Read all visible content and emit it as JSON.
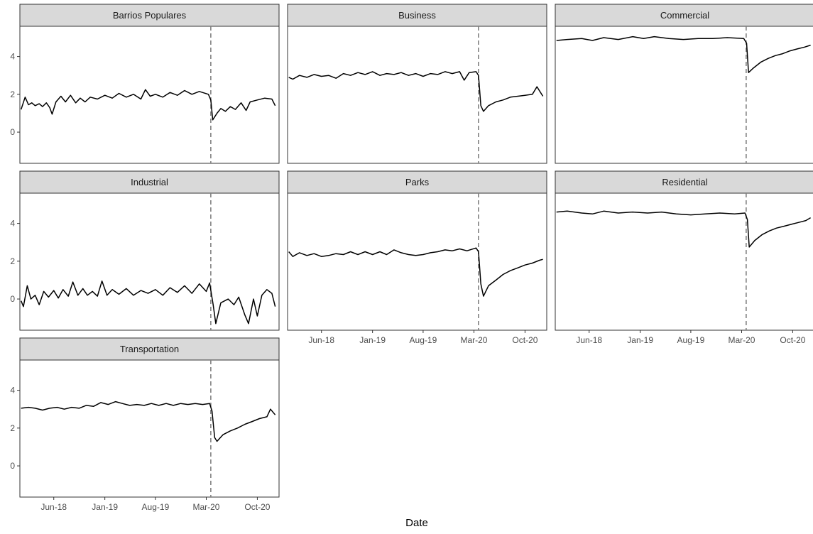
{
  "chart_data": {
    "type": "line",
    "xlabel": "Date",
    "ylabel": "",
    "ylim": [
      -1.65,
      5.6
    ],
    "yticks": [
      0,
      2,
      4
    ],
    "xlim": [
      "2018-01-10",
      "2020-12-31"
    ],
    "xticks": [
      {
        "date": "2018-06-01",
        "label": "Jun-18"
      },
      {
        "date": "2019-01-01",
        "label": "Jan-19"
      },
      {
        "date": "2019-08-01",
        "label": "Aug-19"
      },
      {
        "date": "2020-03-01",
        "label": "Mar-20"
      },
      {
        "date": "2020-10-01",
        "label": "Oct-20"
      }
    ],
    "reference_line": {
      "date": "2020-03-20",
      "style": "dashed",
      "color": "#808080"
    },
    "line_color": "#000000",
    "strip_color": "#d9d9d9",
    "panels": [
      {
        "name": "Barrios Populares",
        "points": [
          [
            "2018-01-15",
            1.2
          ],
          [
            "2018-02-01",
            1.85
          ],
          [
            "2018-02-15",
            1.45
          ],
          [
            "2018-03-01",
            1.55
          ],
          [
            "2018-03-15",
            1.4
          ],
          [
            "2018-04-01",
            1.5
          ],
          [
            "2018-04-15",
            1.35
          ],
          [
            "2018-05-01",
            1.55
          ],
          [
            "2018-05-15",
            1.3
          ],
          [
            "2018-05-25",
            0.95
          ],
          [
            "2018-06-10",
            1.6
          ],
          [
            "2018-07-01",
            1.9
          ],
          [
            "2018-07-20",
            1.6
          ],
          [
            "2018-08-10",
            1.95
          ],
          [
            "2018-09-01",
            1.55
          ],
          [
            "2018-09-20",
            1.8
          ],
          [
            "2018-10-10",
            1.6
          ],
          [
            "2018-11-01",
            1.85
          ],
          [
            "2018-12-01",
            1.75
          ],
          [
            "2019-01-01",
            1.95
          ],
          [
            "2019-02-01",
            1.8
          ],
          [
            "2019-03-01",
            2.05
          ],
          [
            "2019-04-01",
            1.85
          ],
          [
            "2019-05-01",
            2.0
          ],
          [
            "2019-06-01",
            1.75
          ],
          [
            "2019-06-20",
            2.25
          ],
          [
            "2019-07-10",
            1.9
          ],
          [
            "2019-08-01",
            2.0
          ],
          [
            "2019-09-01",
            1.85
          ],
          [
            "2019-10-01",
            2.1
          ],
          [
            "2019-11-01",
            1.95
          ],
          [
            "2019-12-01",
            2.2
          ],
          [
            "2020-01-01",
            2.0
          ],
          [
            "2020-02-01",
            2.15
          ],
          [
            "2020-03-10",
            2.0
          ],
          [
            "2020-03-20",
            1.7
          ],
          [
            "2020-03-28",
            0.65
          ],
          [
            "2020-04-15",
            1.0
          ],
          [
            "2020-05-01",
            1.25
          ],
          [
            "2020-05-20",
            1.1
          ],
          [
            "2020-06-10",
            1.35
          ],
          [
            "2020-07-01",
            1.2
          ],
          [
            "2020-07-25",
            1.55
          ],
          [
            "2020-08-15",
            1.15
          ],
          [
            "2020-09-01",
            1.6
          ],
          [
            "2020-10-01",
            1.7
          ],
          [
            "2020-11-01",
            1.8
          ],
          [
            "2020-12-01",
            1.75
          ],
          [
            "2020-12-15",
            1.4
          ]
        ]
      },
      {
        "name": "Business",
        "points": [
          [
            "2018-01-15",
            2.9
          ],
          [
            "2018-02-01",
            2.8
          ],
          [
            "2018-03-01",
            3.0
          ],
          [
            "2018-04-01",
            2.9
          ],
          [
            "2018-05-01",
            3.05
          ],
          [
            "2018-06-01",
            2.95
          ],
          [
            "2018-07-01",
            3.0
          ],
          [
            "2018-08-01",
            2.85
          ],
          [
            "2018-09-01",
            3.1
          ],
          [
            "2018-10-01",
            3.0
          ],
          [
            "2018-11-01",
            3.15
          ],
          [
            "2018-12-01",
            3.05
          ],
          [
            "2019-01-01",
            3.2
          ],
          [
            "2019-02-01",
            3.0
          ],
          [
            "2019-03-01",
            3.1
          ],
          [
            "2019-04-01",
            3.05
          ],
          [
            "2019-05-01",
            3.15
          ],
          [
            "2019-06-01",
            3.0
          ],
          [
            "2019-07-01",
            3.1
          ],
          [
            "2019-08-01",
            2.95
          ],
          [
            "2019-09-01",
            3.1
          ],
          [
            "2019-10-01",
            3.05
          ],
          [
            "2019-11-01",
            3.2
          ],
          [
            "2019-12-01",
            3.1
          ],
          [
            "2020-01-01",
            3.2
          ],
          [
            "2020-01-20",
            2.75
          ],
          [
            "2020-02-10",
            3.15
          ],
          [
            "2020-03-10",
            3.2
          ],
          [
            "2020-03-20",
            3.0
          ],
          [
            "2020-03-30",
            1.4
          ],
          [
            "2020-04-10",
            1.1
          ],
          [
            "2020-05-01",
            1.4
          ],
          [
            "2020-06-01",
            1.6
          ],
          [
            "2020-07-01",
            1.7
          ],
          [
            "2020-08-01",
            1.85
          ],
          [
            "2020-09-01",
            1.9
          ],
          [
            "2020-10-01",
            1.95
          ],
          [
            "2020-11-01",
            2.0
          ],
          [
            "2020-11-20",
            2.4
          ],
          [
            "2020-12-15",
            1.9
          ]
        ]
      },
      {
        "name": "Commercial",
        "points": [
          [
            "2018-01-15",
            4.85
          ],
          [
            "2018-03-01",
            4.9
          ],
          [
            "2018-05-01",
            4.95
          ],
          [
            "2018-06-15",
            4.85
          ],
          [
            "2018-08-01",
            5.0
          ],
          [
            "2018-10-01",
            4.9
          ],
          [
            "2018-12-01",
            5.05
          ],
          [
            "2019-01-15",
            4.95
          ],
          [
            "2019-03-01",
            5.05
          ],
          [
            "2019-05-01",
            4.95
          ],
          [
            "2019-07-01",
            4.9
          ],
          [
            "2019-09-01",
            4.95
          ],
          [
            "2019-11-01",
            4.95
          ],
          [
            "2020-01-01",
            5.0
          ],
          [
            "2020-03-10",
            4.95
          ],
          [
            "2020-03-22",
            4.7
          ],
          [
            "2020-03-30",
            3.15
          ],
          [
            "2020-04-20",
            3.4
          ],
          [
            "2020-05-20",
            3.7
          ],
          [
            "2020-06-20",
            3.9
          ],
          [
            "2020-07-20",
            4.05
          ],
          [
            "2020-08-20",
            4.15
          ],
          [
            "2020-09-20",
            4.3
          ],
          [
            "2020-10-20",
            4.4
          ],
          [
            "2020-11-20",
            4.5
          ],
          [
            "2020-12-15",
            4.6
          ]
        ]
      },
      {
        "name": "Industrial",
        "points": [
          [
            "2018-01-15",
            -0.1
          ],
          [
            "2018-01-25",
            -0.4
          ],
          [
            "2018-02-10",
            0.7
          ],
          [
            "2018-02-25",
            0.0
          ],
          [
            "2018-03-15",
            0.2
          ],
          [
            "2018-04-01",
            -0.3
          ],
          [
            "2018-04-20",
            0.4
          ],
          [
            "2018-05-10",
            0.1
          ],
          [
            "2018-06-01",
            0.45
          ],
          [
            "2018-06-20",
            0.05
          ],
          [
            "2018-07-10",
            0.5
          ],
          [
            "2018-08-01",
            0.15
          ],
          [
            "2018-08-20",
            0.9
          ],
          [
            "2018-09-10",
            0.2
          ],
          [
            "2018-10-01",
            0.55
          ],
          [
            "2018-10-20",
            0.2
          ],
          [
            "2018-11-10",
            0.4
          ],
          [
            "2018-12-01",
            0.15
          ],
          [
            "2018-12-20",
            0.95
          ],
          [
            "2019-01-10",
            0.2
          ],
          [
            "2019-02-01",
            0.5
          ],
          [
            "2019-03-01",
            0.25
          ],
          [
            "2019-04-01",
            0.55
          ],
          [
            "2019-05-01",
            0.2
          ],
          [
            "2019-06-01",
            0.45
          ],
          [
            "2019-07-01",
            0.3
          ],
          [
            "2019-08-01",
            0.5
          ],
          [
            "2019-09-01",
            0.2
          ],
          [
            "2019-10-01",
            0.6
          ],
          [
            "2019-11-01",
            0.35
          ],
          [
            "2019-12-01",
            0.7
          ],
          [
            "2020-01-01",
            0.3
          ],
          [
            "2020-02-01",
            0.8
          ],
          [
            "2020-03-01",
            0.4
          ],
          [
            "2020-03-15",
            0.85
          ],
          [
            "2020-03-30",
            -0.3
          ],
          [
            "2020-04-10",
            -1.3
          ],
          [
            "2020-05-01",
            -0.2
          ],
          [
            "2020-06-01",
            0.0
          ],
          [
            "2020-06-25",
            -0.3
          ],
          [
            "2020-07-15",
            0.1
          ],
          [
            "2020-08-10",
            -0.85
          ],
          [
            "2020-08-25",
            -1.3
          ],
          [
            "2020-09-15",
            0.0
          ],
          [
            "2020-10-01",
            -0.9
          ],
          [
            "2020-10-20",
            0.2
          ],
          [
            "2020-11-10",
            0.5
          ],
          [
            "2020-12-01",
            0.3
          ],
          [
            "2020-12-15",
            -0.4
          ]
        ]
      },
      {
        "name": "Parks",
        "points": [
          [
            "2018-01-15",
            2.5
          ],
          [
            "2018-02-01",
            2.25
          ],
          [
            "2018-03-01",
            2.45
          ],
          [
            "2018-04-01",
            2.3
          ],
          [
            "2018-05-01",
            2.4
          ],
          [
            "2018-06-01",
            2.25
          ],
          [
            "2018-07-01",
            2.3
          ],
          [
            "2018-08-01",
            2.4
          ],
          [
            "2018-09-01",
            2.35
          ],
          [
            "2018-10-01",
            2.5
          ],
          [
            "2018-11-01",
            2.35
          ],
          [
            "2018-12-01",
            2.5
          ],
          [
            "2019-01-01",
            2.35
          ],
          [
            "2019-02-01",
            2.5
          ],
          [
            "2019-03-01",
            2.35
          ],
          [
            "2019-04-01",
            2.6
          ],
          [
            "2019-05-01",
            2.45
          ],
          [
            "2019-06-01",
            2.35
          ],
          [
            "2019-07-01",
            2.3
          ],
          [
            "2019-08-01",
            2.35
          ],
          [
            "2019-09-01",
            2.45
          ],
          [
            "2019-10-01",
            2.5
          ],
          [
            "2019-11-01",
            2.6
          ],
          [
            "2019-12-01",
            2.55
          ],
          [
            "2020-01-01",
            2.65
          ],
          [
            "2020-02-01",
            2.55
          ],
          [
            "2020-03-10",
            2.7
          ],
          [
            "2020-03-20",
            2.5
          ],
          [
            "2020-03-30",
            0.8
          ],
          [
            "2020-04-10",
            0.15
          ],
          [
            "2020-05-01",
            0.7
          ],
          [
            "2020-06-01",
            1.0
          ],
          [
            "2020-07-01",
            1.3
          ],
          [
            "2020-08-01",
            1.5
          ],
          [
            "2020-09-01",
            1.65
          ],
          [
            "2020-10-01",
            1.8
          ],
          [
            "2020-11-01",
            1.9
          ],
          [
            "2020-12-01",
            2.05
          ],
          [
            "2020-12-15",
            2.1
          ]
        ]
      },
      {
        "name": "Residential",
        "points": [
          [
            "2018-01-15",
            4.6
          ],
          [
            "2018-03-01",
            4.65
          ],
          [
            "2018-05-01",
            4.55
          ],
          [
            "2018-06-15",
            4.5
          ],
          [
            "2018-08-01",
            4.65
          ],
          [
            "2018-10-01",
            4.55
          ],
          [
            "2018-12-01",
            4.6
          ],
          [
            "2019-02-01",
            4.55
          ],
          [
            "2019-04-01",
            4.6
          ],
          [
            "2019-06-01",
            4.5
          ],
          [
            "2019-08-01",
            4.45
          ],
          [
            "2019-10-01",
            4.5
          ],
          [
            "2019-12-01",
            4.55
          ],
          [
            "2020-02-01",
            4.5
          ],
          [
            "2020-03-15",
            4.55
          ],
          [
            "2020-03-25",
            4.2
          ],
          [
            "2020-04-02",
            2.75
          ],
          [
            "2020-04-25",
            3.1
          ],
          [
            "2020-05-25",
            3.4
          ],
          [
            "2020-06-25",
            3.6
          ],
          [
            "2020-07-25",
            3.75
          ],
          [
            "2020-08-25",
            3.85
          ],
          [
            "2020-09-25",
            3.95
          ],
          [
            "2020-10-25",
            4.05
          ],
          [
            "2020-11-25",
            4.15
          ],
          [
            "2020-12-15",
            4.3
          ]
        ]
      },
      {
        "name": "Transportation",
        "points": [
          [
            "2018-01-15",
            3.05
          ],
          [
            "2018-02-15",
            3.1
          ],
          [
            "2018-03-15",
            3.05
          ],
          [
            "2018-04-15",
            2.95
          ],
          [
            "2018-05-15",
            3.05
          ],
          [
            "2018-06-15",
            3.1
          ],
          [
            "2018-07-15",
            3.0
          ],
          [
            "2018-08-15",
            3.1
          ],
          [
            "2018-09-15",
            3.05
          ],
          [
            "2018-10-15",
            3.2
          ],
          [
            "2018-11-15",
            3.15
          ],
          [
            "2018-12-15",
            3.35
          ],
          [
            "2019-01-15",
            3.25
          ],
          [
            "2019-02-15",
            3.4
          ],
          [
            "2019-03-15",
            3.3
          ],
          [
            "2019-04-15",
            3.2
          ],
          [
            "2019-05-15",
            3.25
          ],
          [
            "2019-06-15",
            3.2
          ],
          [
            "2019-07-15",
            3.3
          ],
          [
            "2019-08-15",
            3.2
          ],
          [
            "2019-09-15",
            3.3
          ],
          [
            "2019-10-15",
            3.2
          ],
          [
            "2019-11-15",
            3.3
          ],
          [
            "2019-12-15",
            3.25
          ],
          [
            "2020-01-15",
            3.3
          ],
          [
            "2020-02-15",
            3.25
          ],
          [
            "2020-03-15",
            3.3
          ],
          [
            "2020-03-25",
            2.9
          ],
          [
            "2020-04-05",
            1.5
          ],
          [
            "2020-04-15",
            1.3
          ],
          [
            "2020-05-10",
            1.65
          ],
          [
            "2020-06-10",
            1.85
          ],
          [
            "2020-07-10",
            2.0
          ],
          [
            "2020-08-10",
            2.2
          ],
          [
            "2020-09-10",
            2.35
          ],
          [
            "2020-10-10",
            2.5
          ],
          [
            "2020-11-10",
            2.6
          ],
          [
            "2020-11-25",
            3.0
          ],
          [
            "2020-12-15",
            2.7
          ]
        ]
      }
    ]
  }
}
